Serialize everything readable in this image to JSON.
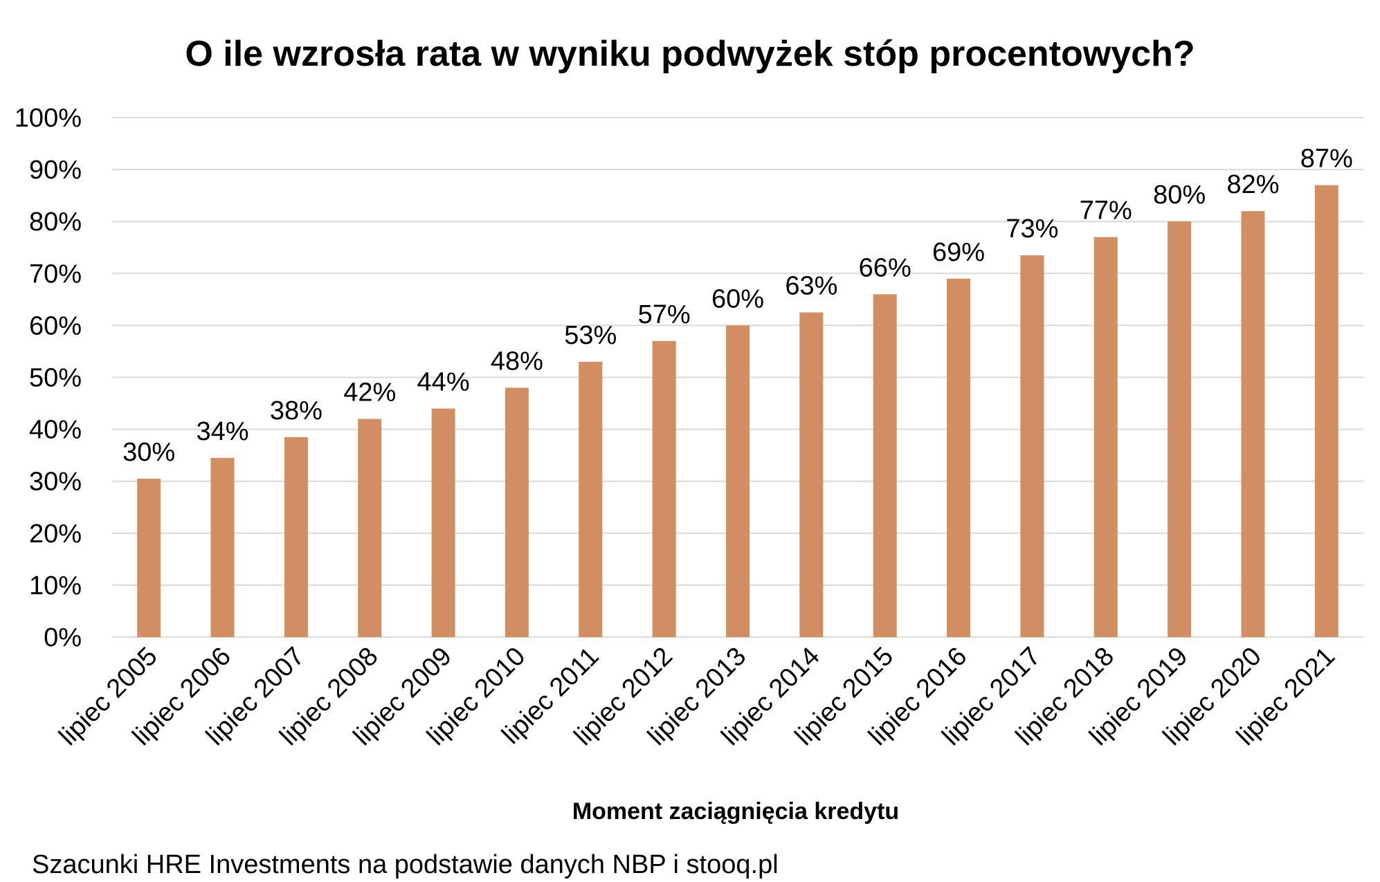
{
  "chart_data": {
    "type": "bar",
    "title": "O ile wzrosła rata w wyniku podwyżek stóp procentowych?",
    "xlabel": "Moment zaciągnięcia kredytu",
    "ylabel": "",
    "ylim": [
      0,
      100
    ],
    "yticks": [
      "0%",
      "10%",
      "20%",
      "30%",
      "40%",
      "50%",
      "60%",
      "70%",
      "80%",
      "90%",
      "100%"
    ],
    "categories": [
      "lipiec 2005",
      "lipiec 2006",
      "lipiec 2007",
      "lipiec 2008",
      "lipiec 2009",
      "lipiec 2010",
      "lipiec 2011",
      "lipiec 2012",
      "lipiec 2013",
      "lipiec 2014",
      "lipiec 2015",
      "lipiec 2016",
      "lipiec 2017",
      "lipiec 2018",
      "lipiec 2019",
      "lipiec 2020",
      "lipiec 2021"
    ],
    "values": [
      30.5,
      34.5,
      38.5,
      42,
      44,
      48,
      53,
      57,
      60,
      62.5,
      66,
      69,
      73.5,
      77,
      80,
      82,
      87
    ],
    "data_labels": [
      "30%",
      "34%",
      "38%",
      "42%",
      "44%",
      "48%",
      "53%",
      "57%",
      "60%",
      "63%",
      "66%",
      "69%",
      "73%",
      "77%",
      "80%",
      "82%",
      "87%"
    ],
    "grid": true,
    "bar_color": "#D08E62",
    "grid_color": "#D9D9D9"
  },
  "source": "Szacunki HRE Investments na podstawie danych NBP i stooq.pl"
}
